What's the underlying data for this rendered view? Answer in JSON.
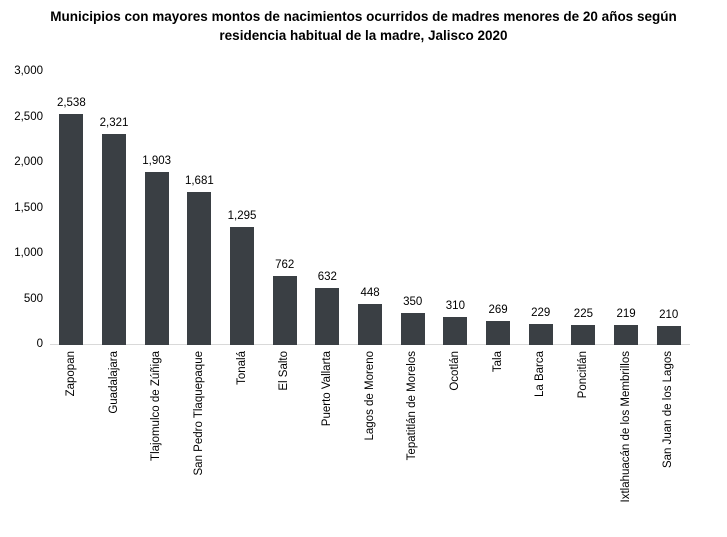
{
  "title": "Municipios con mayores montos de nacimientos ocurridos de madres menores de 20 años según residencia habitual de la madre, Jalisco 2020",
  "chart_data": {
    "type": "bar",
    "title": "Municipios con mayores montos de nacimientos ocurridos de madres menores de 20 años según residencia habitual de la madre, Jalisco 2020",
    "categories": [
      "Zapopan",
      "Guadalajara",
      "Tlajomulco de Zúñiga",
      "San Pedro Tlaquepaque",
      "Tonalá",
      "El Salto",
      "Puerto Vallarta",
      "Lagos de Moreno",
      "Tepatitlán de Morelos",
      "Ocotlán",
      "Tala",
      "La Barca",
      "Poncitlán",
      "Ixtlahuacán de los Membrillos",
      "San Juan de los Lagos"
    ],
    "values": [
      2538,
      2321,
      1903,
      1681,
      1295,
      762,
      632,
      448,
      350,
      310,
      269,
      229,
      225,
      219,
      210
    ],
    "value_labels": [
      "2,538",
      "2,321",
      "1,903",
      "1,681",
      "1,295",
      "762",
      "632",
      "448",
      "350",
      "310",
      "269",
      "229",
      "225",
      "219",
      "210"
    ],
    "xlabel": "",
    "ylabel": "",
    "ylim": [
      0,
      3000
    ],
    "yticks": [
      0,
      500,
      1000,
      1500,
      2000,
      2500,
      3000
    ],
    "ytick_labels": [
      "0",
      "500",
      "1,000",
      "1,500",
      "2,000",
      "2,500",
      "3,000"
    ],
    "grid": false,
    "legend": false,
    "bar_color": "#3a3f44",
    "baseline_color": "#d9d9d9",
    "text_color": "#000000"
  }
}
